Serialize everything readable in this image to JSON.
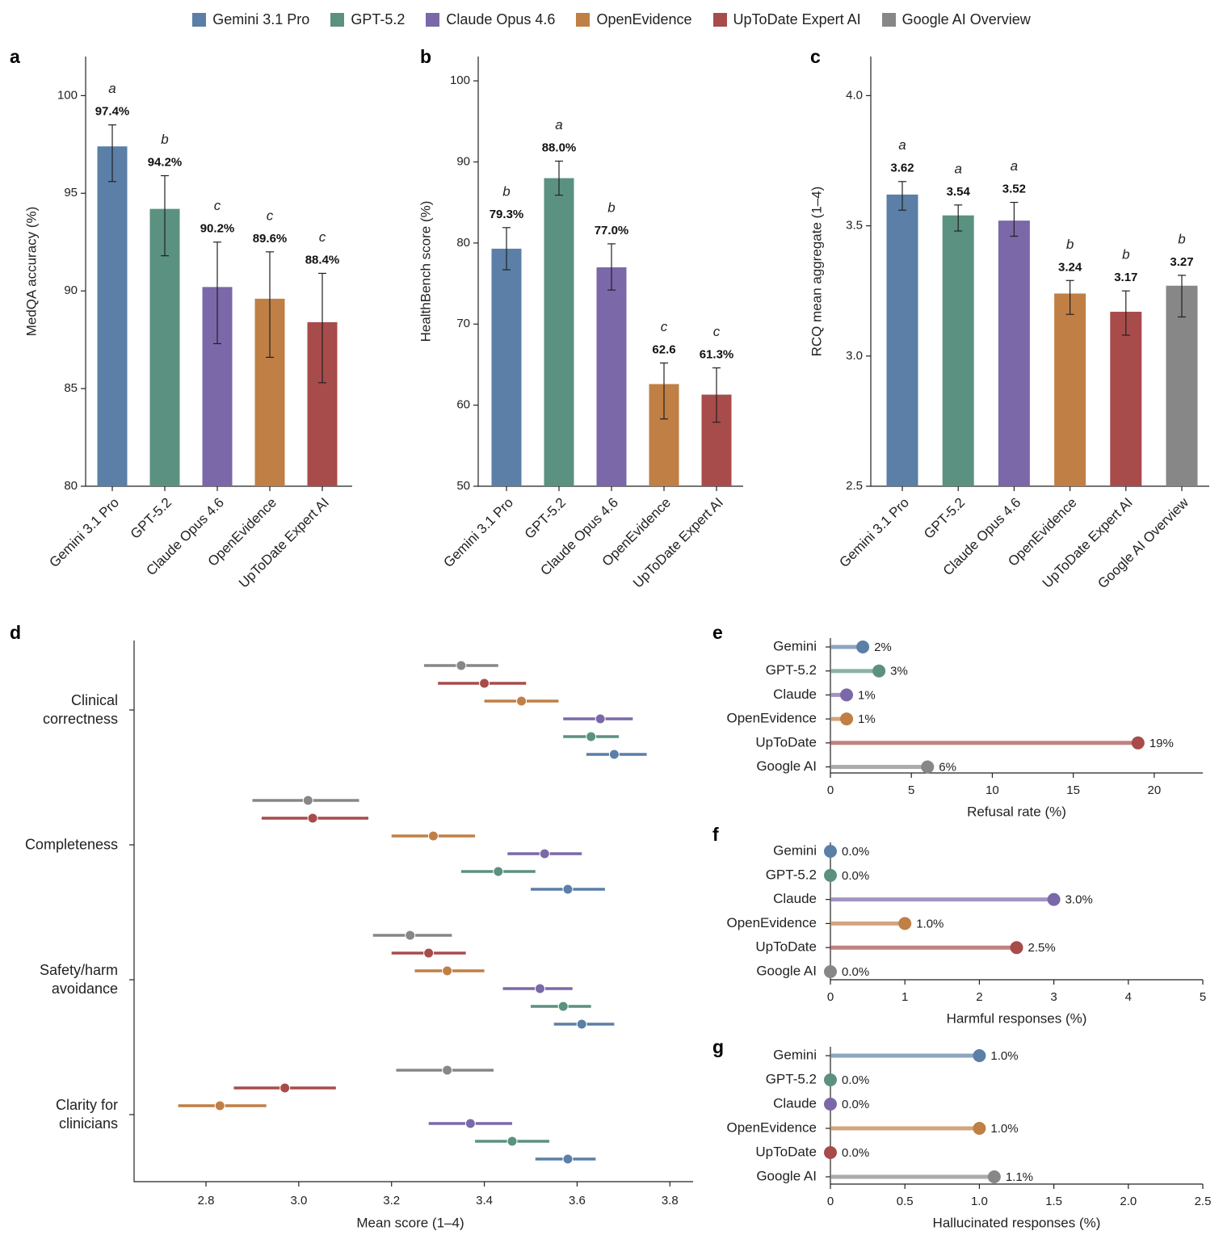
{
  "chart_data": [
    {
      "type": "bar",
      "panel": "a",
      "y_label": "MedQA accuracy (%)",
      "categories": [
        "Gemini 3.1 Pro",
        "GPT-5.2",
        "Claude Opus 4.6",
        "OpenEvidence",
        "UpToDate Expert AI"
      ],
      "values": [
        97.4,
        94.2,
        90.2,
        89.6,
        88.4
      ],
      "value_labels": [
        "97.4%",
        "94.2%",
        "90.2%",
        "89.6%",
        "88.4%"
      ],
      "ci": [
        [
          95.6,
          98.5
        ],
        [
          91.8,
          95.9
        ],
        [
          87.3,
          92.5
        ],
        [
          86.6,
          92.0
        ],
        [
          85.3,
          90.9
        ]
      ],
      "letters": [
        "a",
        "b",
        "c",
        "c",
        "c"
      ],
      "colors": [
        "#5b7fa6",
        "#5b9180",
        "#7b68a8",
        "#c07f45",
        "#a84b4b"
      ],
      "ylim": [
        80,
        102
      ],
      "yticks": [
        80,
        85,
        90,
        95,
        100
      ]
    },
    {
      "type": "bar",
      "panel": "b",
      "y_label": "HealthBench score (%)",
      "categories": [
        "Gemini 3.1 Pro",
        "GPT-5.2",
        "Claude Opus 4.6",
        "OpenEvidence",
        "UpToDate Expert AI"
      ],
      "values": [
        79.3,
        88.0,
        77.0,
        62.6,
        61.3
      ],
      "value_labels": [
        "79.3%",
        "88.0%",
        "77.0%",
        "62.6",
        "61.3%"
      ],
      "ci": [
        [
          76.7,
          81.9
        ],
        [
          85.9,
          90.1
        ],
        [
          74.2,
          79.9
        ],
        [
          58.3,
          65.2
        ],
        [
          57.9,
          64.6
        ]
      ],
      "letters": [
        "b",
        "a",
        "b",
        "c",
        "c"
      ],
      "colors": [
        "#5b7fa6",
        "#5b9180",
        "#7b68a8",
        "#c07f45",
        "#a84b4b"
      ],
      "ylim": [
        50,
        103
      ],
      "yticks": [
        50,
        60,
        70,
        80,
        90,
        100
      ]
    },
    {
      "type": "bar",
      "panel": "c",
      "y_label": "RCQ mean aggregate (1–4)",
      "categories": [
        "Gemini 3.1 Pro",
        "GPT-5.2",
        "Claude Opus 4.6",
        "OpenEvidence",
        "UpToDate Expert AI",
        "Google AI Overview"
      ],
      "values": [
        3.62,
        3.54,
        3.52,
        3.24,
        3.17,
        3.27
      ],
      "value_labels": [
        "3.62",
        "3.54",
        "3.52",
        "3.24",
        "3.17",
        "3.27"
      ],
      "ci": [
        [
          3.56,
          3.67
        ],
        [
          3.48,
          3.58
        ],
        [
          3.46,
          3.59
        ],
        [
          3.16,
          3.29
        ],
        [
          3.08,
          3.25
        ],
        [
          3.15,
          3.31
        ]
      ],
      "letters": [
        "a",
        "a",
        "a",
        "b",
        "b",
        "b"
      ],
      "colors": [
        "#5b7fa6",
        "#5b9180",
        "#7b68a8",
        "#c07f45",
        "#a84b4b",
        "#878787"
      ],
      "ylim": [
        2.5,
        4.15
      ],
      "yticks": [
        2.5,
        {
          "value": 3,
          "label": "3.0"
        },
        3.5,
        {
          "value": 4,
          "label": "4.0"
        }
      ]
    },
    {
      "type": "dot",
      "panel": "d",
      "x_label": "Mean score (1–4)",
      "categories": [
        "Clinical correctness",
        "Completeness",
        "Safety/harm avoidance",
        "Clarity for clinicians"
      ],
      "series": [
        {
          "name": "Gemini 3.1 Pro",
          "color": "#5b7fa6",
          "values": [
            3.68,
            3.58,
            3.61,
            3.58
          ],
          "ci": [
            [
              3.62,
              3.75
            ],
            [
              3.5,
              3.66
            ],
            [
              3.55,
              3.68
            ],
            [
              3.51,
              3.64
            ]
          ]
        },
        {
          "name": "GPT-5.2",
          "color": "#5b9180",
          "values": [
            3.63,
            3.43,
            3.57,
            3.46
          ],
          "ci": [
            [
              3.57,
              3.69
            ],
            [
              3.35,
              3.51
            ],
            [
              3.5,
              3.63
            ],
            [
              3.38,
              3.54
            ]
          ]
        },
        {
          "name": "Claude Opus 4.6",
          "color": "#7b68a8",
          "values": [
            3.65,
            3.53,
            3.52,
            3.37
          ],
          "ci": [
            [
              3.57,
              3.72
            ],
            [
              3.45,
              3.61
            ],
            [
              3.44,
              3.59
            ],
            [
              3.28,
              3.46
            ]
          ]
        },
        {
          "name": "OpenEvidence",
          "color": "#c07f45",
          "values": [
            3.48,
            3.29,
            3.32,
            2.83
          ],
          "ci": [
            [
              3.4,
              3.56
            ],
            [
              3.2,
              3.38
            ],
            [
              3.25,
              3.4
            ],
            [
              2.74,
              2.93
            ]
          ]
        },
        {
          "name": "UpToDate Expert AI",
          "color": "#a84b4b",
          "values": [
            3.4,
            3.03,
            3.28,
            2.97
          ],
          "ci": [
            [
              3.3,
              3.49
            ],
            [
              2.92,
              3.15
            ],
            [
              3.2,
              3.36
            ],
            [
              2.86,
              3.08
            ]
          ]
        },
        {
          "name": "Google AI Overview",
          "color": "#878787",
          "values": [
            3.35,
            3.02,
            3.24,
            3.32
          ],
          "ci": [
            [
              3.27,
              3.43
            ],
            [
              2.9,
              3.13
            ],
            [
              3.16,
              3.33
            ],
            [
              3.21,
              3.42
            ]
          ]
        }
      ],
      "xlim": [
        2.645,
        3.85
      ],
      "xticks": [
        2.8,
        {
          "value": 3,
          "label": "3.0"
        },
        3.2,
        3.4,
        3.6,
        3.8
      ]
    },
    {
      "type": "lollipop",
      "panel": "e",
      "x_label": "Refusal rate (%)",
      "categories": [
        "Gemini",
        "GPT-5.2",
        "Claude",
        "OpenEvidence",
        "UpToDate",
        "Google AI"
      ],
      "values": [
        2,
        3,
        1,
        1,
        19,
        6
      ],
      "value_labels": [
        "2%",
        "3%",
        "1%",
        "1%",
        "19%",
        "6%"
      ],
      "colors": [
        "#5b7fa6",
        "#5b9180",
        "#7b68a8",
        "#c07f45",
        "#a84b4b",
        "#878787"
      ],
      "xlim": [
        0,
        23
      ],
      "xticks": [
        0,
        5,
        10,
        15,
        20
      ]
    },
    {
      "type": "lollipop",
      "panel": "f",
      "x_label": "Harmful responses (%)",
      "categories": [
        "Gemini",
        "GPT-5.2",
        "Claude",
        "OpenEvidence",
        "UpToDate",
        "Google AI"
      ],
      "values": [
        0,
        0,
        3,
        1,
        2.5,
        0
      ],
      "value_labels": [
        "0.0%",
        "0.0%",
        "3.0%",
        "1.0%",
        "2.5%",
        "0.0%"
      ],
      "colors": [
        "#5b7fa6",
        "#5b9180",
        "#7b68a8",
        "#c07f45",
        "#a84b4b",
        "#878787"
      ],
      "xlim": [
        0,
        5
      ],
      "xticks": [
        0,
        1,
        2,
        3,
        4,
        5
      ]
    },
    {
      "type": "lollipop",
      "panel": "g",
      "x_label": "Hallucinated responses (%)",
      "categories": [
        "Gemini",
        "GPT-5.2",
        "Claude",
        "OpenEvidence",
        "UpToDate",
        "Google AI"
      ],
      "values": [
        1,
        0,
        0,
        1,
        0,
        1.1
      ],
      "value_labels": [
        "1.0%",
        "0.0%",
        "0.0%",
        "1.0%",
        "0.0%",
        "1.1%"
      ],
      "colors": [
        "#5b7fa6",
        "#5b9180",
        "#7b68a8",
        "#c07f45",
        "#a84b4b",
        "#878787"
      ],
      "xlim": [
        0,
        2.5
      ],
      "xticks": [
        0,
        0.5,
        {
          "value": 1,
          "label": "1.0"
        },
        1.5,
        {
          "value": 2,
          "label": "2.0"
        },
        2.5
      ]
    }
  ]
}
